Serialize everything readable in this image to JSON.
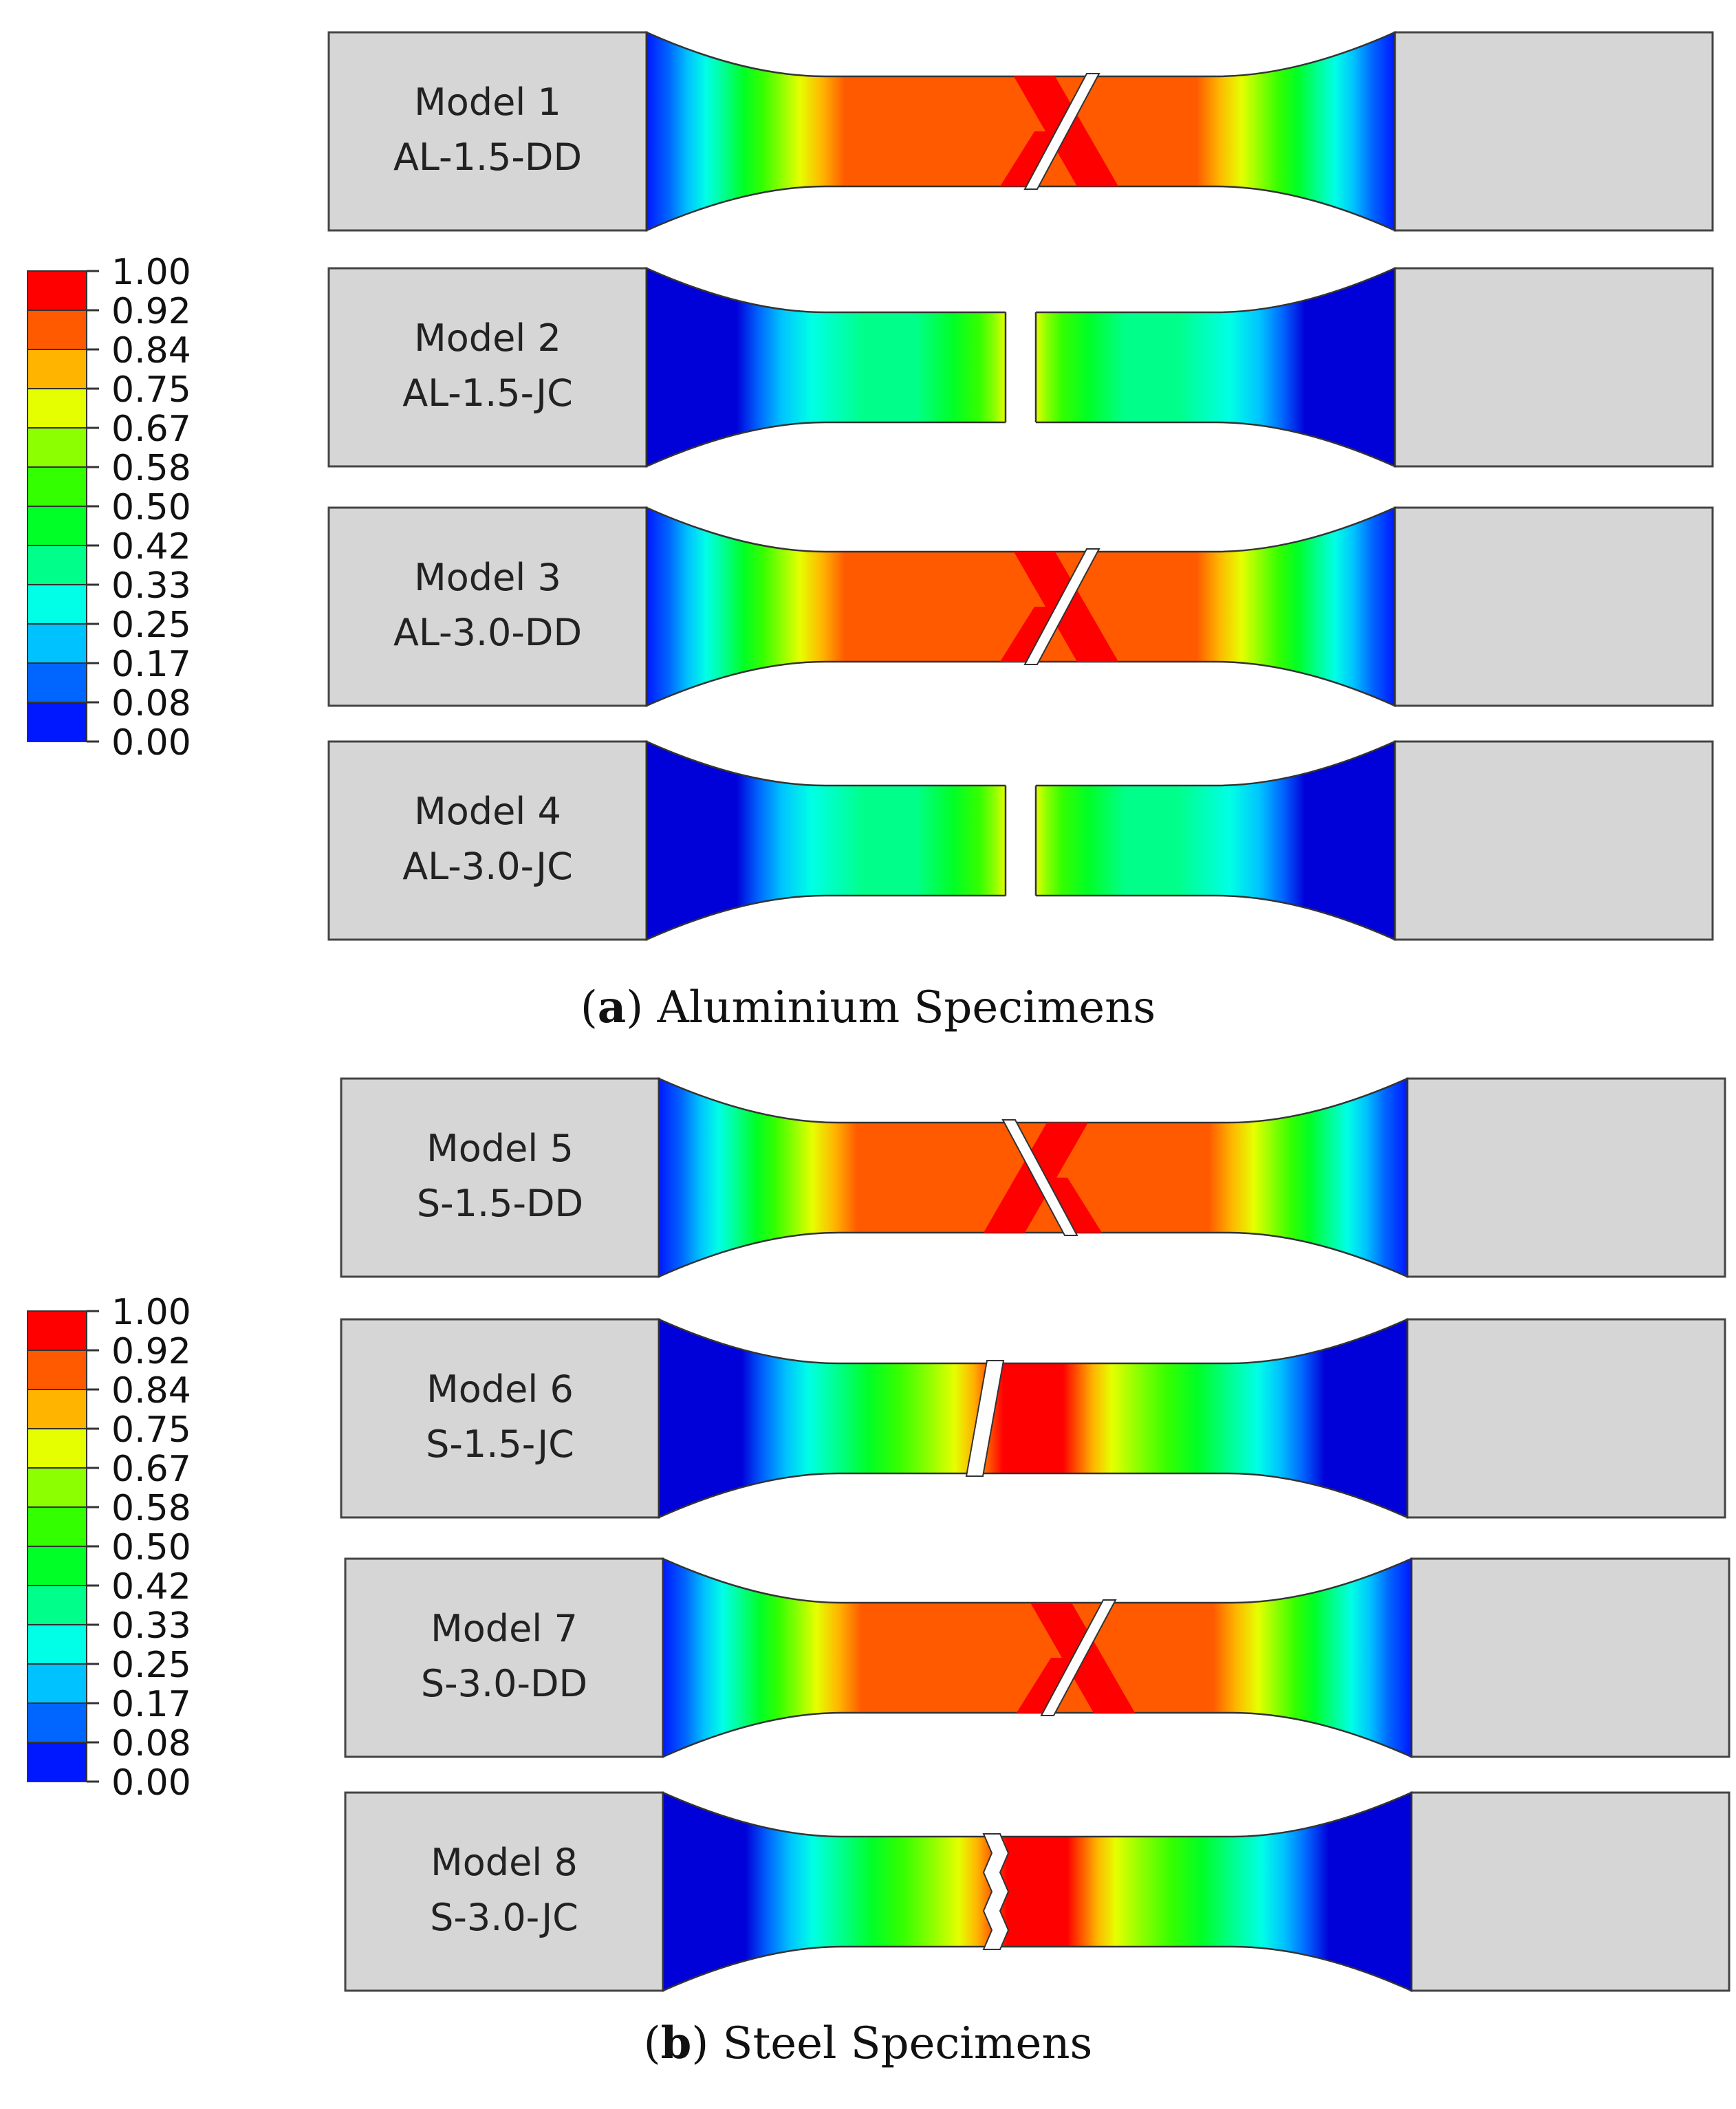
{
  "legend": {
    "levels": [
      "1.00",
      "0.92",
      "0.84",
      "0.75",
      "0.67",
      "0.58",
      "0.50",
      "0.42",
      "0.33",
      "0.25",
      "0.17",
      "0.08",
      "0.00"
    ],
    "colors": [
      "#ff0000",
      "#ff5a00",
      "#ffb400",
      "#e6ff00",
      "#8cff00",
      "#34ff00",
      "#00ff26",
      "#00ff8a",
      "#00ffe6",
      "#00c2ff",
      "#0066ff",
      "#0018ff",
      "#0000d8"
    ]
  },
  "panels": [
    {
      "caption_letter": "a",
      "caption_text": " Aluminium Specimens",
      "specimens": [
        {
          "line1": "Model 1",
          "line2": "AL-1.5-DD",
          "failure": "shear",
          "contour": "dd"
        },
        {
          "line1": "Model 2",
          "line2": "AL-1.5-JC",
          "failure": "gap",
          "contour": "jc-al"
        },
        {
          "line1": "Model 3",
          "line2": "AL-3.0-DD",
          "failure": "shear",
          "contour": "dd"
        },
        {
          "line1": "Model 4",
          "line2": "AL-3.0-JC",
          "failure": "gap",
          "contour": "jc-al"
        }
      ]
    },
    {
      "caption_letter": "b",
      "caption_text": " Steel Specimens",
      "specimens": [
        {
          "line1": "Model 5",
          "line2": "S-1.5-DD",
          "failure": "shear-rev",
          "contour": "dd"
        },
        {
          "line1": "Model 6",
          "line2": "S-1.5-JC",
          "failure": "zig",
          "contour": "jc-s"
        },
        {
          "line1": "Model 7",
          "line2": "S-3.0-DD",
          "failure": "shear",
          "contour": "dd"
        },
        {
          "line1": "Model 8",
          "line2": "S-3.0-JC",
          "failure": "zig2",
          "contour": "jc-s"
        }
      ]
    }
  ]
}
